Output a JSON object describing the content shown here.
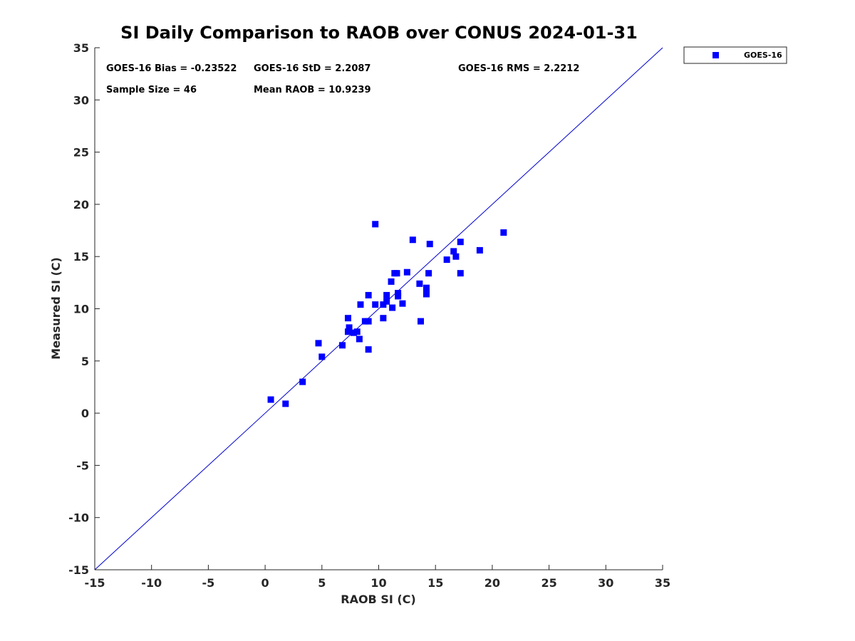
{
  "chart_data": {
    "type": "scatter",
    "title": "SI Daily Comparison to RAOB over CONUS 2024-01-31",
    "xlabel": "RAOB SI (C)",
    "ylabel": "Measured SI (C)",
    "xlim": [
      -15,
      35
    ],
    "ylim": [
      -15,
      35
    ],
    "xticks": [
      "-15",
      "-10",
      "-5",
      "0",
      "5",
      "10",
      "15",
      "20",
      "25",
      "30",
      "35"
    ],
    "yticks": [
      "-15",
      "-10",
      "-5",
      "0",
      "5",
      "10",
      "15",
      "20",
      "25",
      "30",
      "35"
    ],
    "grid": false,
    "legend_position": "outside-top-right",
    "colors": {
      "marker": "#0000ff",
      "line": "#0000cc",
      "axis": "#262626"
    },
    "series": [
      {
        "name": "GOES-16",
        "marker": "square",
        "points": [
          [
            0.5,
            1.3
          ],
          [
            1.8,
            0.9
          ],
          [
            3.3,
            3.0
          ],
          [
            4.7,
            6.7
          ],
          [
            5.0,
            5.4
          ],
          [
            6.8,
            6.5
          ],
          [
            7.3,
            9.1
          ],
          [
            7.3,
            7.8
          ],
          [
            7.4,
            8.2
          ],
          [
            7.8,
            7.7
          ],
          [
            8.1,
            7.8
          ],
          [
            8.3,
            7.1
          ],
          [
            8.4,
            10.4
          ],
          [
            8.8,
            8.8
          ],
          [
            9.1,
            8.8
          ],
          [
            9.1,
            11.3
          ],
          [
            9.1,
            6.1
          ],
          [
            9.7,
            10.4
          ],
          [
            9.7,
            18.1
          ],
          [
            10.4,
            10.4
          ],
          [
            10.4,
            9.1
          ],
          [
            10.7,
            11.3
          ],
          [
            10.7,
            10.7
          ],
          [
            11.1,
            12.6
          ],
          [
            11.2,
            10.1
          ],
          [
            11.4,
            13.4
          ],
          [
            11.6,
            13.4
          ],
          [
            11.7,
            11.5
          ],
          [
            11.7,
            11.2
          ],
          [
            12.1,
            10.5
          ],
          [
            12.5,
            13.5
          ],
          [
            13.0,
            16.6
          ],
          [
            13.6,
            12.4
          ],
          [
            13.7,
            8.8
          ],
          [
            14.2,
            12.0
          ],
          [
            14.2,
            11.6
          ],
          [
            14.2,
            11.4
          ],
          [
            14.4,
            13.4
          ],
          [
            14.5,
            16.2
          ],
          [
            16.0,
            14.7
          ],
          [
            16.6,
            15.5
          ],
          [
            16.8,
            15.0
          ],
          [
            17.2,
            16.4
          ],
          [
            17.2,
            13.4
          ],
          [
            18.9,
            15.6
          ],
          [
            21.0,
            17.3
          ]
        ]
      }
    ],
    "reference_line": {
      "from": [
        -15,
        -15
      ],
      "to": [
        35,
        35
      ]
    },
    "annotations": [
      "GOES-16 Bias = -0.23522",
      "GOES-16 StD = 2.2087",
      "GOES-16 RMS = 2.2212",
      "Sample Size = 46",
      "Mean RAOB = 10.9239"
    ]
  }
}
